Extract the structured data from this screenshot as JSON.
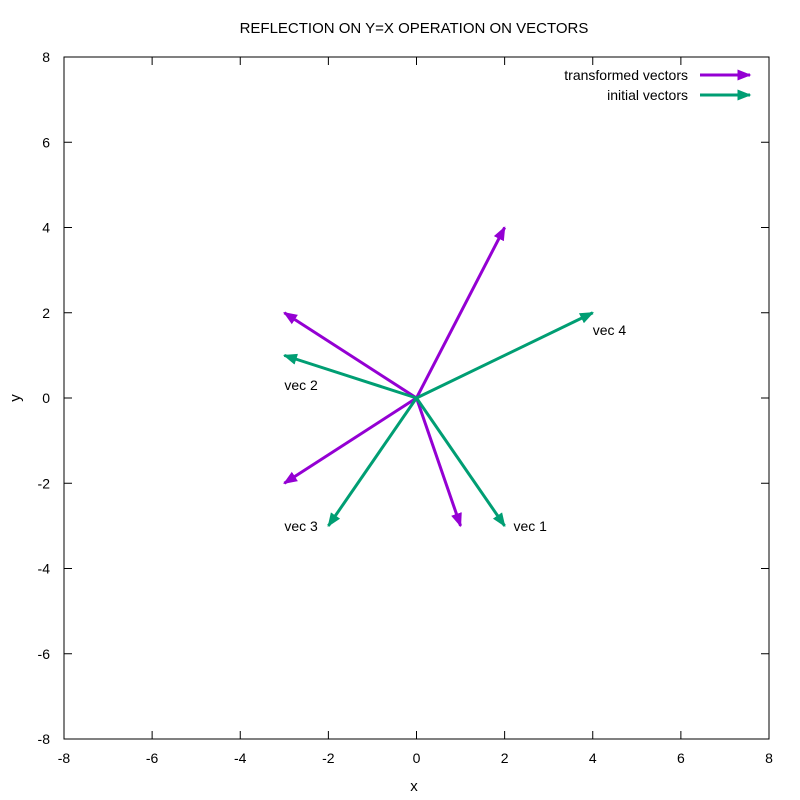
{
  "chart_data": {
    "type": "vector",
    "title": "REFLECTION ON Y=X OPERATION ON VECTORS",
    "xlabel": "x",
    "ylabel": "y",
    "xlim": [
      -8,
      8
    ],
    "ylim": [
      -8,
      8
    ],
    "xticks": [
      -8,
      -6,
      -4,
      -2,
      0,
      2,
      4,
      6,
      8
    ],
    "yticks": [
      -8,
      -6,
      -4,
      -2,
      0,
      2,
      4,
      6,
      8
    ],
    "grid": false,
    "legend_position": "top-right",
    "series": [
      {
        "name": "transformed vectors",
        "color": "#9400d3",
        "vectors": [
          {
            "x0": 0,
            "y0": 0,
            "x1": 1,
            "y1": -3
          },
          {
            "x0": 0,
            "y0": 0,
            "x1": -3,
            "y1": 2
          },
          {
            "x0": 0,
            "y0": 0,
            "x1": -3,
            "y1": -2
          },
          {
            "x0": 0,
            "y0": 0,
            "x1": 2,
            "y1": 4
          }
        ]
      },
      {
        "name": "initial vectors",
        "color": "#009e73",
        "vectors": [
          {
            "x0": 0,
            "y0": 0,
            "x1": 2,
            "y1": -3
          },
          {
            "x0": 0,
            "y0": 0,
            "x1": -3,
            "y1": 1
          },
          {
            "x0": 0,
            "y0": 0,
            "x1": -2,
            "y1": -3
          },
          {
            "x0": 0,
            "y0": 0,
            "x1": 4,
            "y1": 2
          }
        ]
      }
    ],
    "annotations": [
      {
        "text": "vec 1",
        "x": 2.2,
        "y": -3
      },
      {
        "text": "vec 2",
        "x": -3,
        "y": 0.3
      },
      {
        "text": "vec 3",
        "x": -3,
        "y": -3
      },
      {
        "text": "vec 4",
        "x": 4,
        "y": 1.6
      }
    ]
  }
}
